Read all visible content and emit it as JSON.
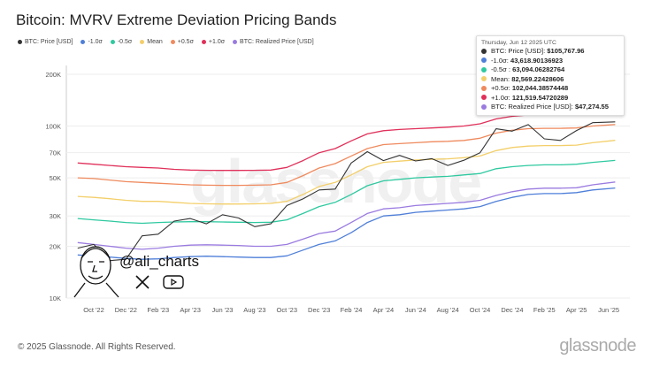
{
  "title": "Bitcoin: MVRV Extreme Deviation Pricing Bands",
  "legend": [
    {
      "label": "BTC: Price [USD]",
      "color": "#333333"
    },
    {
      "label": "-1.0σ",
      "color": "#4f7fd8"
    },
    {
      "label": "-0.5σ",
      "color": "#2fc9a0"
    },
    {
      "label": "Mean",
      "color": "#f3cf6a"
    },
    {
      "label": "+0.5σ",
      "color": "#ef8a5e"
    },
    {
      "label": "+1.0σ",
      "color": "#e0305a"
    },
    {
      "label": "BTC: Realized Price [USD]",
      "color": "#9a7be0"
    }
  ],
  "tooltip": {
    "date": "Thursday, Jun 12 2025 UTC",
    "rows": [
      {
        "label": "BTC: Price [USD]: ",
        "value": "$105,767.96",
        "color": "#333333"
      },
      {
        "label": "-1.0σ: ",
        "value": "43,618.90136923",
        "color": "#4f7fd8"
      },
      {
        "label": "-0.5σ : ",
        "value": "63,094.06282764",
        "color": "#2fc9a0"
      },
      {
        "label": "Mean: ",
        "value": "82,569.22428606",
        "color": "#f3cf6a"
      },
      {
        "label": "+0.5σ: ",
        "value": "102,044.38574448",
        "color": "#ef8a5e"
      },
      {
        "label": "+1.0σ: ",
        "value": "121,519.54720289",
        "color": "#e0305a"
      },
      {
        "label": "BTC: Realized Price [USD]: ",
        "value": "$47,274.55",
        "color": "#9a7be0"
      }
    ]
  },
  "watermark": "glassnode",
  "overlay": {
    "handle": "@ali_charts",
    "icons": [
      "avatar-sketch",
      "x-logo-icon",
      "youtube-icon"
    ]
  },
  "footer": "© 2025 Glassnode. All Rights Reserved.",
  "brand": "glassnode",
  "chart_data": {
    "type": "line",
    "title": "Bitcoin: MVRV Extreme Deviation Pricing Bands",
    "yscale": "log",
    "ylim": [
      10000,
      200000
    ],
    "yticks": [
      {
        "v": 10000,
        "label": "10K"
      },
      {
        "v": 20000,
        "label": "20K"
      },
      {
        "v": 30000,
        "label": "30K"
      },
      {
        "v": 50000,
        "label": "50K"
      },
      {
        "v": 70000,
        "label": "70K"
      },
      {
        "v": 100000,
        "label": "100K"
      },
      {
        "v": 200000,
        "label": "200K"
      }
    ],
    "xticks": [
      "Oct '22",
      "Dec '22",
      "Feb '23",
      "Apr '23",
      "Jun '23",
      "Aug '23",
      "Oct '23",
      "Dec '23",
      "Feb '24",
      "Apr '24",
      "Jun '24",
      "Aug '24",
      "Oct '24",
      "Dec '24",
      "Feb '25",
      "Apr '25",
      "Jun '25"
    ],
    "grid": true,
    "legend_position": "top-left",
    "x": [
      "2022-09",
      "2022-10",
      "2022-11",
      "2022-12",
      "2023-01",
      "2023-02",
      "2023-03",
      "2023-04",
      "2023-05",
      "2023-06",
      "2023-07",
      "2023-08",
      "2023-09",
      "2023-10",
      "2023-11",
      "2023-12",
      "2024-01",
      "2024-02",
      "2024-03",
      "2024-04",
      "2024-05",
      "2024-06",
      "2024-07",
      "2024-08",
      "2024-09",
      "2024-10",
      "2024-11",
      "2024-12",
      "2025-01",
      "2025-02",
      "2025-03",
      "2025-04",
      "2025-05",
      "2025-06-12"
    ],
    "series": [
      {
        "name": "+1.0σ",
        "color": "#e0305a",
        "values": [
          61000,
          60000,
          59000,
          58000,
          57500,
          57000,
          56000,
          55500,
          55300,
          55200,
          55200,
          55300,
          55500,
          57500,
          63000,
          70000,
          74000,
          82000,
          90000,
          94000,
          95500,
          96500,
          97500,
          98500,
          100000,
          103000,
          110000,
          114000,
          116000,
          116500,
          116500,
          117000,
          119500,
          121520
        ]
      },
      {
        "name": "+0.5σ",
        "color": "#ef8a5e",
        "values": [
          50000,
          49500,
          48500,
          47500,
          47000,
          46500,
          46000,
          45500,
          45300,
          45200,
          45200,
          45300,
          45500,
          47000,
          51500,
          57000,
          60500,
          67000,
          74000,
          78000,
          79000,
          80000,
          81000,
          81500,
          82500,
          85000,
          91000,
          94500,
          96500,
          97000,
          97000,
          97500,
          100000,
          102044
        ]
      },
      {
        "name": "Mean",
        "color": "#f3cf6a",
        "values": [
          39000,
          38500,
          37800,
          37000,
          36500,
          36500,
          36000,
          35500,
          35300,
          35200,
          35200,
          35300,
          35500,
          36500,
          40000,
          44500,
          47000,
          52000,
          58000,
          61500,
          62500,
          63500,
          64000,
          64500,
          65500,
          67000,
          72000,
          75000,
          76500,
          77000,
          77000,
          77500,
          80000,
          82569
        ]
      },
      {
        "name": "-0.5σ",
        "color": "#2fc9a0",
        "values": [
          29000,
          28500,
          28000,
          27500,
          27200,
          27500,
          27700,
          27800,
          27800,
          27700,
          27600,
          27500,
          27600,
          28500,
          31000,
          34000,
          36000,
          40000,
          45000,
          48000,
          49000,
          50000,
          50500,
          51000,
          52000,
          53000,
          56500,
          58000,
          59000,
          59500,
          59500,
          60000,
          61500,
          63094
        ]
      },
      {
        "name": "BTC: Realized Price [USD]",
        "color": "#9a7be0",
        "values": [
          21000,
          20500,
          20000,
          19500,
          19200,
          19500,
          20000,
          20300,
          20400,
          20300,
          20200,
          20000,
          20000,
          20500,
          22000,
          23700,
          24500,
          27500,
          31000,
          33000,
          33500,
          34500,
          35000,
          35500,
          36000,
          37000,
          39500,
          41500,
          43000,
          43500,
          43500,
          43800,
          45500,
          47275
        ]
      },
      {
        "name": "-1.0σ",
        "color": "#4f7fd8",
        "values": [
          17800,
          17500,
          17300,
          17000,
          16800,
          16900,
          17200,
          17400,
          17500,
          17400,
          17300,
          17200,
          17200,
          17600,
          19000,
          20500,
          21500,
          24000,
          27500,
          30000,
          30500,
          31500,
          32000,
          32500,
          33000,
          34000,
          36500,
          38500,
          40000,
          40500,
          40500,
          41000,
          42500,
          43619
        ]
      },
      {
        "name": "BTC: Price [USD]",
        "color": "#333333",
        "values": [
          19500,
          20500,
          16500,
          16800,
          23000,
          23500,
          28000,
          29000,
          27000,
          30500,
          29200,
          26000,
          27000,
          34500,
          37700,
          42500,
          43000,
          61000,
          71000,
          63000,
          67500,
          62700,
          64600,
          59000,
          63300,
          70000,
          96400,
          93400,
          102000,
          84300,
          82500,
          94200,
          104600,
          105768
        ]
      }
    ]
  }
}
